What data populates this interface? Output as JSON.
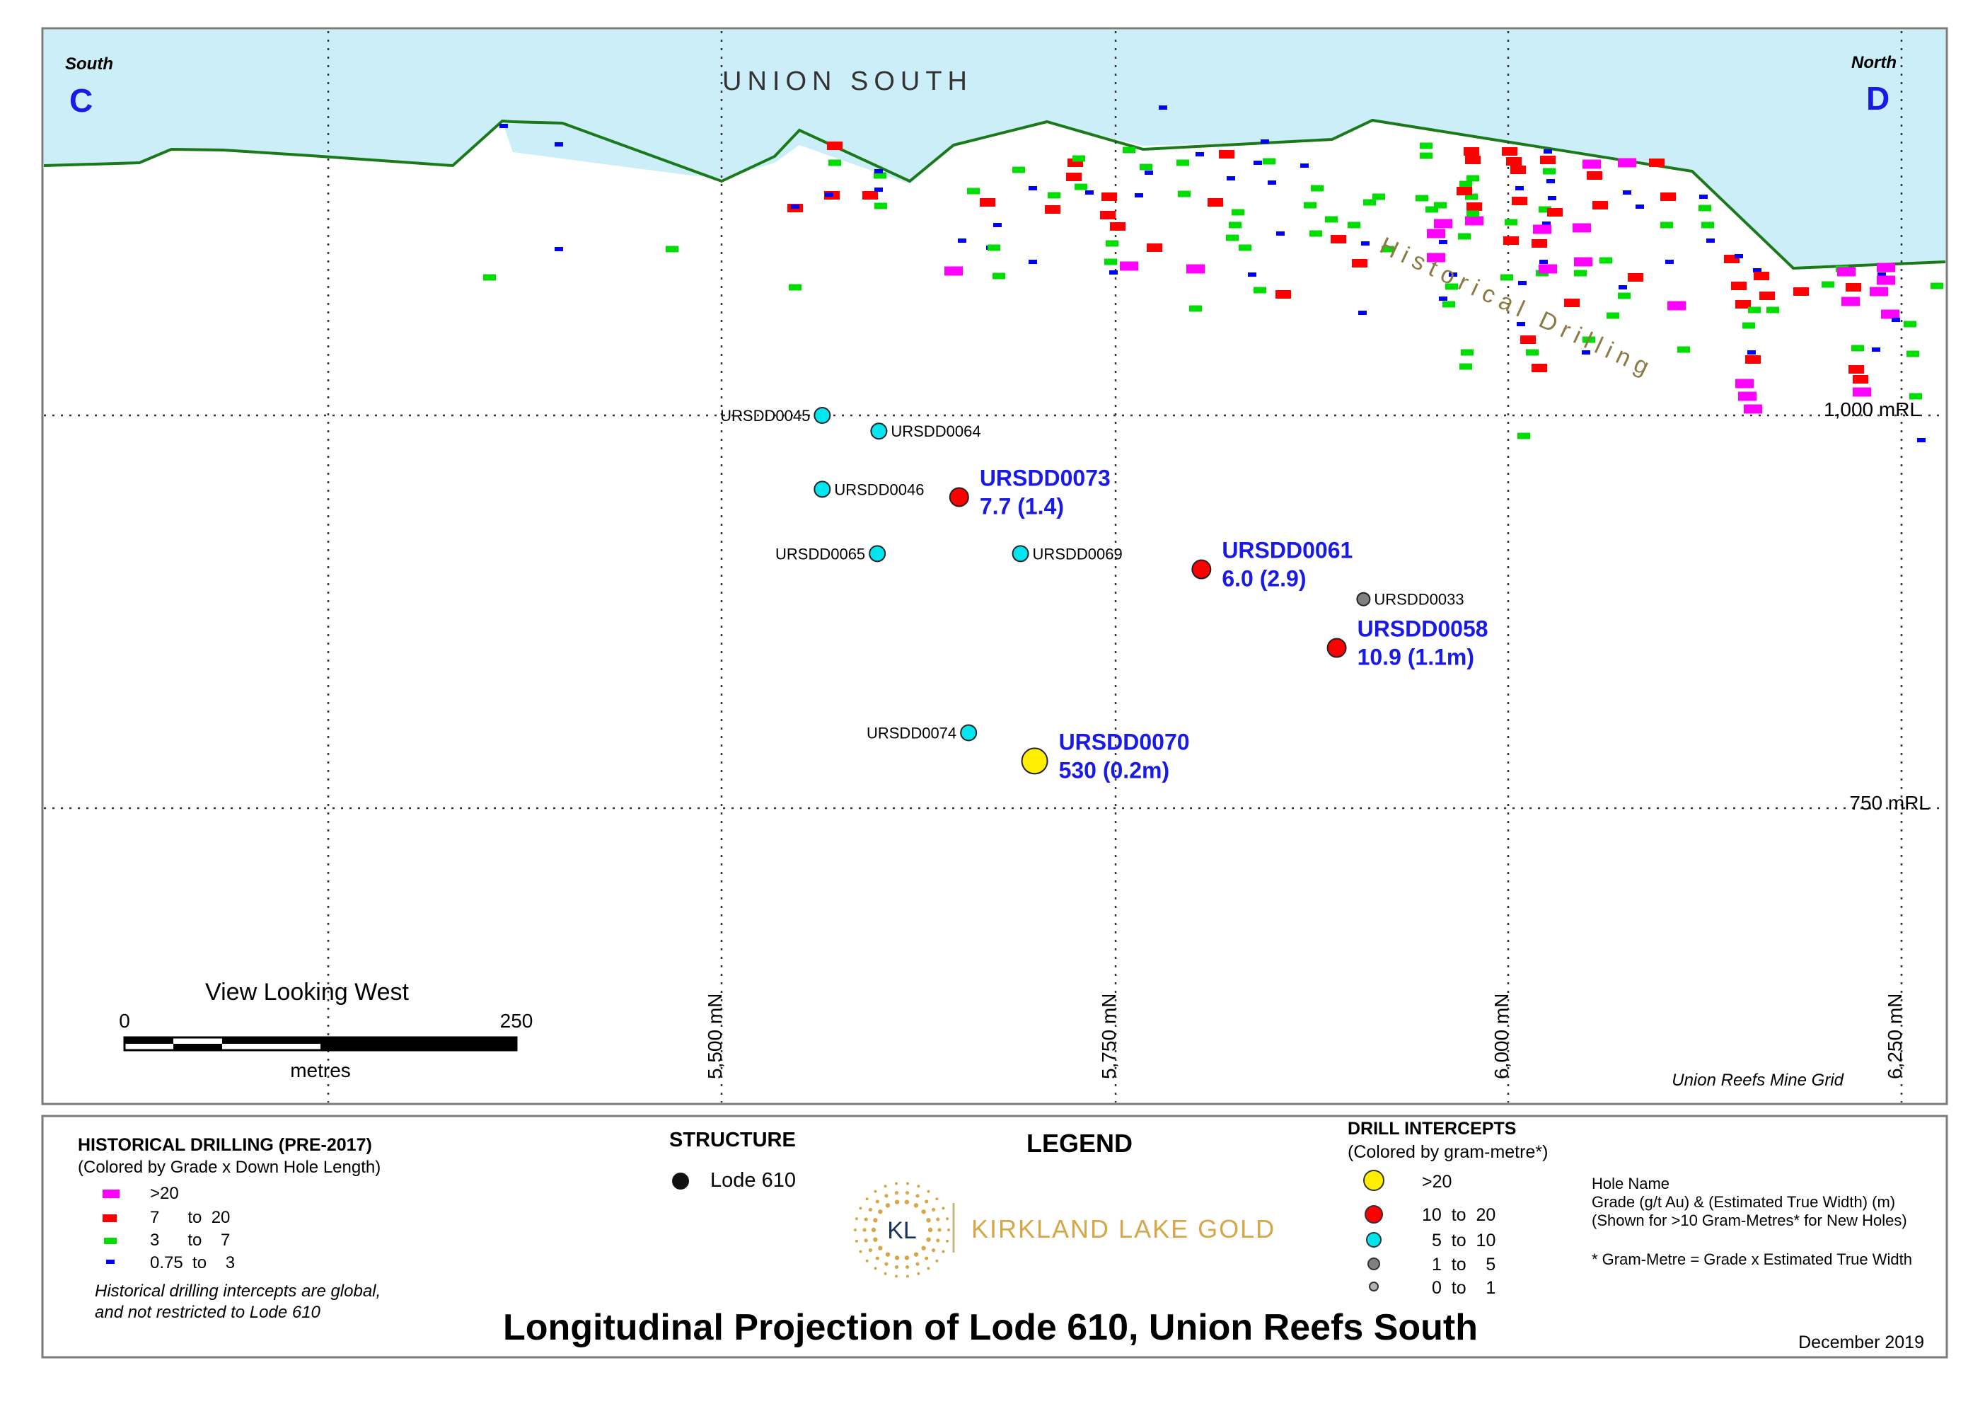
{
  "header": {
    "south_word": "South",
    "south_letter": "C",
    "north_word": "North",
    "north_letter": "D",
    "area_name": "UNION SOUTH",
    "historical_label": "Historical Drilling"
  },
  "elevations": [
    {
      "label": "1,000 mRL",
      "rl": 1000
    },
    {
      "label": "750 mRL",
      "rl": 750
    }
  ],
  "northings": [
    {
      "label": "5,500 mN",
      "mn": 5500
    },
    {
      "label": "5,750 mN",
      "mn": 5750
    },
    {
      "label": "6,000 mN",
      "mn": 6000
    },
    {
      "label": "6,250 mN",
      "mn": 6250
    }
  ],
  "view_label": "View Looking West",
  "scale_bar": {
    "start": "0",
    "end": "250",
    "unit": "metres"
  },
  "grid_label": "Union Reefs Mine Grid",
  "drill_holes": [
    {
      "name": "URSDD0045",
      "mn": 5564,
      "rl": 1000,
      "class": "5 to 10"
    },
    {
      "name": "URSDD0064",
      "mn": 5600,
      "rl": 990,
      "class": "5 to 10"
    },
    {
      "name": "URSDD0046",
      "mn": 5564,
      "rl": 953,
      "class": "5 to 10"
    },
    {
      "name": "URSDD0073",
      "mn": 5651,
      "rl": 948,
      "class": "10 to 20",
      "grade": "7.7 (1.4)"
    },
    {
      "name": "URSDD0065",
      "mn": 5599,
      "rl": 912,
      "class": "5 to 10"
    },
    {
      "name": "URSDD0069",
      "mn": 5690,
      "rl": 912,
      "class": "5 to 10"
    },
    {
      "name": "URSDD0061",
      "mn": 5805,
      "rl": 902,
      "class": "10 to 20",
      "grade": "6.0 (2.9)"
    },
    {
      "name": "URSDD0033",
      "mn": 5908,
      "rl": 883,
      "class": "1 to 5"
    },
    {
      "name": "URSDD0058",
      "mn": 5891,
      "rl": 852,
      "class": "10 to 20",
      "grade": "10.9 (1.1m)"
    },
    {
      "name": "URSDD0074",
      "mn": 5657,
      "rl": 798,
      "class": "5 to 10"
    },
    {
      "name": "URSDD0070",
      "mn": 5699,
      "rl": 780,
      "class": ">20",
      "grade": "530 (0.2m)"
    }
  ],
  "legend": {
    "title": "LEGEND",
    "historical": {
      "title": "HISTORICAL DRILLING (PRE-2017)",
      "subtitle": "(Colored by Grade x Down Hole Length)",
      "items": [
        {
          "label": ">20",
          "color": "#ff00ff"
        },
        {
          "label": "7      to  20",
          "color": "#ff0000"
        },
        {
          "label": "3      to    7",
          "color": "#00dd00"
        },
        {
          "label": "0.75  to    3",
          "color": "#0000ff"
        }
      ],
      "note_line1": "Historical drilling intercepts are global,",
      "note_line2": "and not restricted to Lode 610"
    },
    "structure": {
      "title": "STRUCTURE",
      "item": "Lode 610"
    },
    "company": {
      "logo_text": "KL",
      "name": "KIRKLAND LAKE GOLD"
    },
    "intercepts": {
      "title": "DRILL INTERCEPTS",
      "subtitle": "(Colored by gram-metre*)",
      "items": [
        {
          "label": ">20",
          "color": "#ffee00"
        },
        {
          "label": "10  to  20",
          "color": "#ff0000"
        },
        {
          "label": "5  to  10",
          "color": "#00e5ee"
        },
        {
          "label": "1  to    5",
          "color": "#808080"
        },
        {
          "label": "0  to    1",
          "color": "#b4b4b4"
        }
      ]
    },
    "notes": {
      "line1": "Hole Name",
      "line2": "Grade (g/t Au) & (Estimated True Width) (m)",
      "line3": "(Shown for >10 Gram-Metres* for New Holes)",
      "line4": "* Gram-Metre = Grade x Estimated True Width"
    }
  },
  "title": "Longitudinal Projection of Lode 610, Union Reefs South",
  "date": "December 2019",
  "colors": {
    "sky": "#cceef8",
    "surface": "#1a7a1a",
    "label_blue": "#1a1ae6",
    "historical_label": "#8c7a45",
    "gold": "#d6a748"
  }
}
